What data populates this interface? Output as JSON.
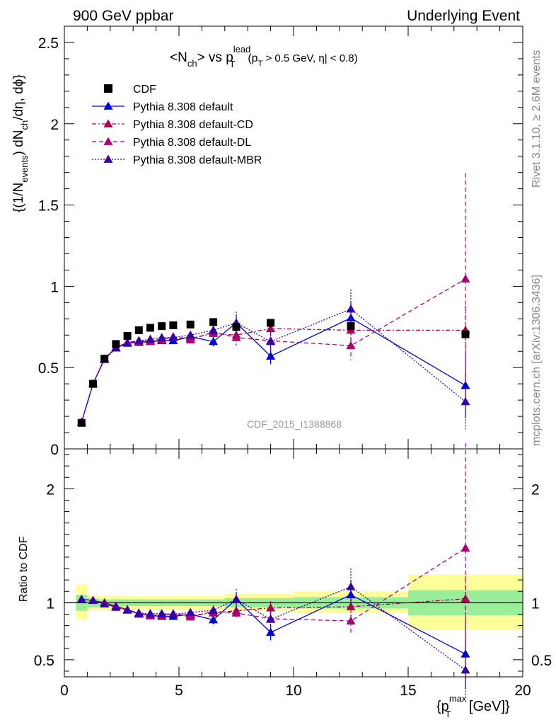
{
  "header": {
    "left": "900 GeV ppbar",
    "right": "Underlying Event"
  },
  "side_text": {
    "rivet": "Rivet 3.1.10, ≥ 2.6M events",
    "mcplots": "mcplots.cern.ch [arXiv:1306.3436]"
  },
  "watermark": "CDF_2015_I1388868",
  "colors": {
    "cdf": "#000000",
    "default": "#0000dd",
    "cd": "#aa0055",
    "dl": "#aa0077",
    "mbr": "#3300aa",
    "band_inner": "#99ee99",
    "band_outer": "#ffff99"
  },
  "chart_data": [
    {
      "type": "scatter",
      "panel": "main",
      "title_parts": {
        "n": "<N",
        "ch": "ch",
        "vs": "> vs p",
        "sup": "lead",
        "T": "T",
        "cut1": "(p",
        "cut1T": "T",
        "cut2": " > 0.5 GeV, η| < 0.8)"
      },
      "ylabel_parts": {
        "a": "{(1/N",
        "b": "events",
        "c": ") dN",
        "d": "ch",
        "e": "/dη, dϕ}"
      },
      "ylim": [
        0,
        2.6
      ],
      "yticks": [
        "0",
        "0.5",
        "1",
        "1.5",
        "2",
        "2.5"
      ],
      "ytick_values": [
        0,
        0.5,
        1,
        1.5,
        2,
        2.5
      ],
      "xlim": [
        0,
        20
      ],
      "x": [
        0.75,
        1.25,
        1.75,
        2.25,
        2.75,
        3.25,
        3.75,
        4.25,
        4.75,
        5.5,
        6.5,
        7.5,
        9.0,
        12.5,
        17.5
      ],
      "series": [
        {
          "name": "CDF",
          "key": "cdf",
          "marker": "square",
          "values": [
            0.16,
            0.4,
            0.555,
            0.645,
            0.695,
            0.73,
            0.745,
            0.755,
            0.76,
            0.765,
            0.78,
            0.75,
            0.775,
            0.755,
            0.705
          ],
          "errors": [
            0,
            0,
            0,
            0,
            0,
            0,
            0,
            0,
            0,
            0,
            0,
            0,
            0,
            0,
            0
          ]
        },
        {
          "name": "Pythia 8.308 default",
          "key": "default",
          "dash": "",
          "values": [
            0.165,
            0.4,
            0.555,
            0.62,
            0.65,
            0.655,
            0.66,
            0.665,
            0.665,
            0.69,
            0.66,
            0.775,
            0.57,
            0.805,
            0.39
          ],
          "errors": [
            0,
            0,
            0,
            0,
            0.01,
            0.01,
            0.01,
            0.015,
            0.015,
            0.02,
            0.03,
            0.05,
            0.05,
            0.1,
            0.2
          ]
        },
        {
          "name": "Pythia 8.308 default-CD",
          "key": "cd",
          "dash": "6,3,2,3",
          "values": [
            0.165,
            0.4,
            0.555,
            0.625,
            0.655,
            0.66,
            0.665,
            0.675,
            0.685,
            0.68,
            0.71,
            0.7,
            0.74,
            0.73,
            0.73
          ],
          "errors": [
            0,
            0,
            0,
            0,
            0.01,
            0.01,
            0.01,
            0.015,
            0.015,
            0.02,
            0.03,
            0.04,
            0.05,
            0.08,
            0.15
          ]
        },
        {
          "name": "Pythia 8.308 default-DL",
          "key": "dl",
          "dash": "6,4",
          "values": [
            0.165,
            0.4,
            0.55,
            0.62,
            0.655,
            0.665,
            0.66,
            0.67,
            0.69,
            0.67,
            0.72,
            0.685,
            0.665,
            0.635,
            1.045
          ],
          "errors": [
            0,
            0,
            0,
            0,
            0.01,
            0.01,
            0.01,
            0.015,
            0.015,
            0.02,
            0.03,
            0.05,
            0.06,
            0.09,
            0.65
          ]
        },
        {
          "name": "Pythia 8.308 default-MBR",
          "key": "mbr",
          "dash": "2,2",
          "values": [
            0.165,
            0.4,
            0.55,
            0.62,
            0.65,
            0.665,
            0.675,
            0.685,
            0.685,
            0.7,
            0.73,
            0.775,
            0.66,
            0.86,
            0.29
          ],
          "errors": [
            0,
            0,
            0,
            0,
            0.01,
            0.01,
            0.01,
            0.015,
            0.015,
            0.02,
            0.03,
            0.07,
            0.06,
            0.12,
            0.17
          ]
        }
      ]
    },
    {
      "type": "scatter",
      "panel": "ratio",
      "ylabel": "Ratio to CDF",
      "ylim": [
        0.35,
        2.35
      ],
      "yticks": [
        "0.5",
        "1",
        "2"
      ],
      "ytick_values": [
        0.5,
        1,
        2
      ],
      "xlim": [
        0,
        20
      ],
      "xticks": [
        "0",
        "5",
        "10",
        "15",
        "20"
      ],
      "xtick_values": [
        0,
        5,
        10,
        15,
        20
      ],
      "xlabel_parts": {
        "a": "{p",
        "sub": "T",
        "sup": "max",
        "b": " [GeV]}"
      },
      "bins": [
        [
          0.5,
          1.0
        ],
        [
          1.0,
          1.5
        ],
        [
          1.5,
          2.0
        ],
        [
          2.0,
          2.5
        ],
        [
          2.5,
          3.0
        ],
        [
          3.0,
          3.5
        ],
        [
          3.5,
          4.0
        ],
        [
          4.0,
          4.5
        ],
        [
          4.5,
          5.0
        ],
        [
          5.0,
          6.0
        ],
        [
          6.0,
          7.0
        ],
        [
          7.0,
          8.0
        ],
        [
          8.0,
          10.0
        ],
        [
          10.0,
          15.0
        ],
        [
          15.0,
          20.0
        ]
      ],
      "band_inner": [
        [
          0.93,
          1.07
        ],
        [
          0.96,
          1.04
        ],
        [
          0.97,
          1.03
        ],
        [
          0.97,
          1.03
        ],
        [
          0.97,
          1.03
        ],
        [
          0.97,
          1.03
        ],
        [
          0.97,
          1.03
        ],
        [
          0.97,
          1.03
        ],
        [
          0.97,
          1.03
        ],
        [
          0.97,
          1.03
        ],
        [
          0.97,
          1.03
        ],
        [
          0.96,
          1.04
        ],
        [
          0.96,
          1.04
        ],
        [
          0.95,
          1.05
        ],
        [
          0.89,
          1.11
        ]
      ],
      "band_outer": [
        [
          0.85,
          1.16
        ],
        [
          0.94,
          1.06
        ],
        [
          0.94,
          1.06
        ],
        [
          0.94,
          1.06
        ],
        [
          0.94,
          1.06
        ],
        [
          0.94,
          1.06
        ],
        [
          0.94,
          1.06
        ],
        [
          0.94,
          1.06
        ],
        [
          0.94,
          1.06
        ],
        [
          0.94,
          1.06
        ],
        [
          0.94,
          1.06
        ],
        [
          0.93,
          1.08
        ],
        [
          0.93,
          1.08
        ],
        [
          0.91,
          1.1
        ],
        [
          0.76,
          1.25
        ]
      ],
      "x": [
        0.75,
        1.25,
        1.75,
        2.25,
        2.75,
        3.25,
        3.75,
        4.25,
        4.75,
        5.5,
        6.5,
        7.5,
        9.0,
        12.5,
        17.5
      ],
      "series": [
        {
          "name": "Pythia 8.308 default",
          "key": "default",
          "dash": "",
          "values": [
            1.03,
            1.02,
            1.0,
            0.97,
            0.94,
            0.9,
            0.89,
            0.88,
            0.88,
            0.9,
            0.85,
            1.03,
            0.74,
            1.07,
            0.55
          ],
          "errors": [
            0,
            0,
            0,
            0,
            0.01,
            0.015,
            0.015,
            0.02,
            0.02,
            0.025,
            0.04,
            0.06,
            0.07,
            0.13,
            0.3
          ]
        },
        {
          "name": "Pythia 8.308 default-CD",
          "key": "cd",
          "dash": "6,3,2,3",
          "values": [
            1.03,
            1.02,
            1.0,
            0.97,
            0.94,
            0.905,
            0.895,
            0.895,
            0.9,
            0.89,
            0.91,
            0.93,
            0.955,
            0.965,
            1.035
          ],
          "errors": [
            0,
            0,
            0,
            0,
            0.01,
            0.015,
            0.015,
            0.02,
            0.02,
            0.025,
            0.04,
            0.05,
            0.06,
            0.1,
            0.2
          ]
        },
        {
          "name": "Pythia 8.308 default-DL",
          "key": "dl",
          "dash": "6,4",
          "values": [
            1.03,
            1.02,
            0.99,
            0.96,
            0.94,
            0.91,
            0.885,
            0.885,
            0.905,
            0.875,
            0.925,
            0.91,
            0.86,
            0.84,
            1.48
          ],
          "errors": [
            0,
            0,
            0,
            0,
            0.01,
            0.015,
            0.015,
            0.02,
            0.02,
            0.025,
            0.04,
            0.06,
            0.08,
            0.12,
            0.92
          ]
        },
        {
          "name": "Pythia 8.308 default-MBR",
          "key": "mbr",
          "dash": "2,2",
          "values": [
            1.03,
            1.02,
            0.99,
            0.96,
            0.935,
            0.91,
            0.905,
            0.905,
            0.9,
            0.915,
            0.935,
            1.03,
            0.855,
            1.14,
            0.41
          ],
          "errors": [
            0,
            0,
            0,
            0,
            0.01,
            0.015,
            0.015,
            0.02,
            0.02,
            0.025,
            0.04,
            0.09,
            0.08,
            0.16,
            0.24
          ]
        }
      ]
    }
  ]
}
